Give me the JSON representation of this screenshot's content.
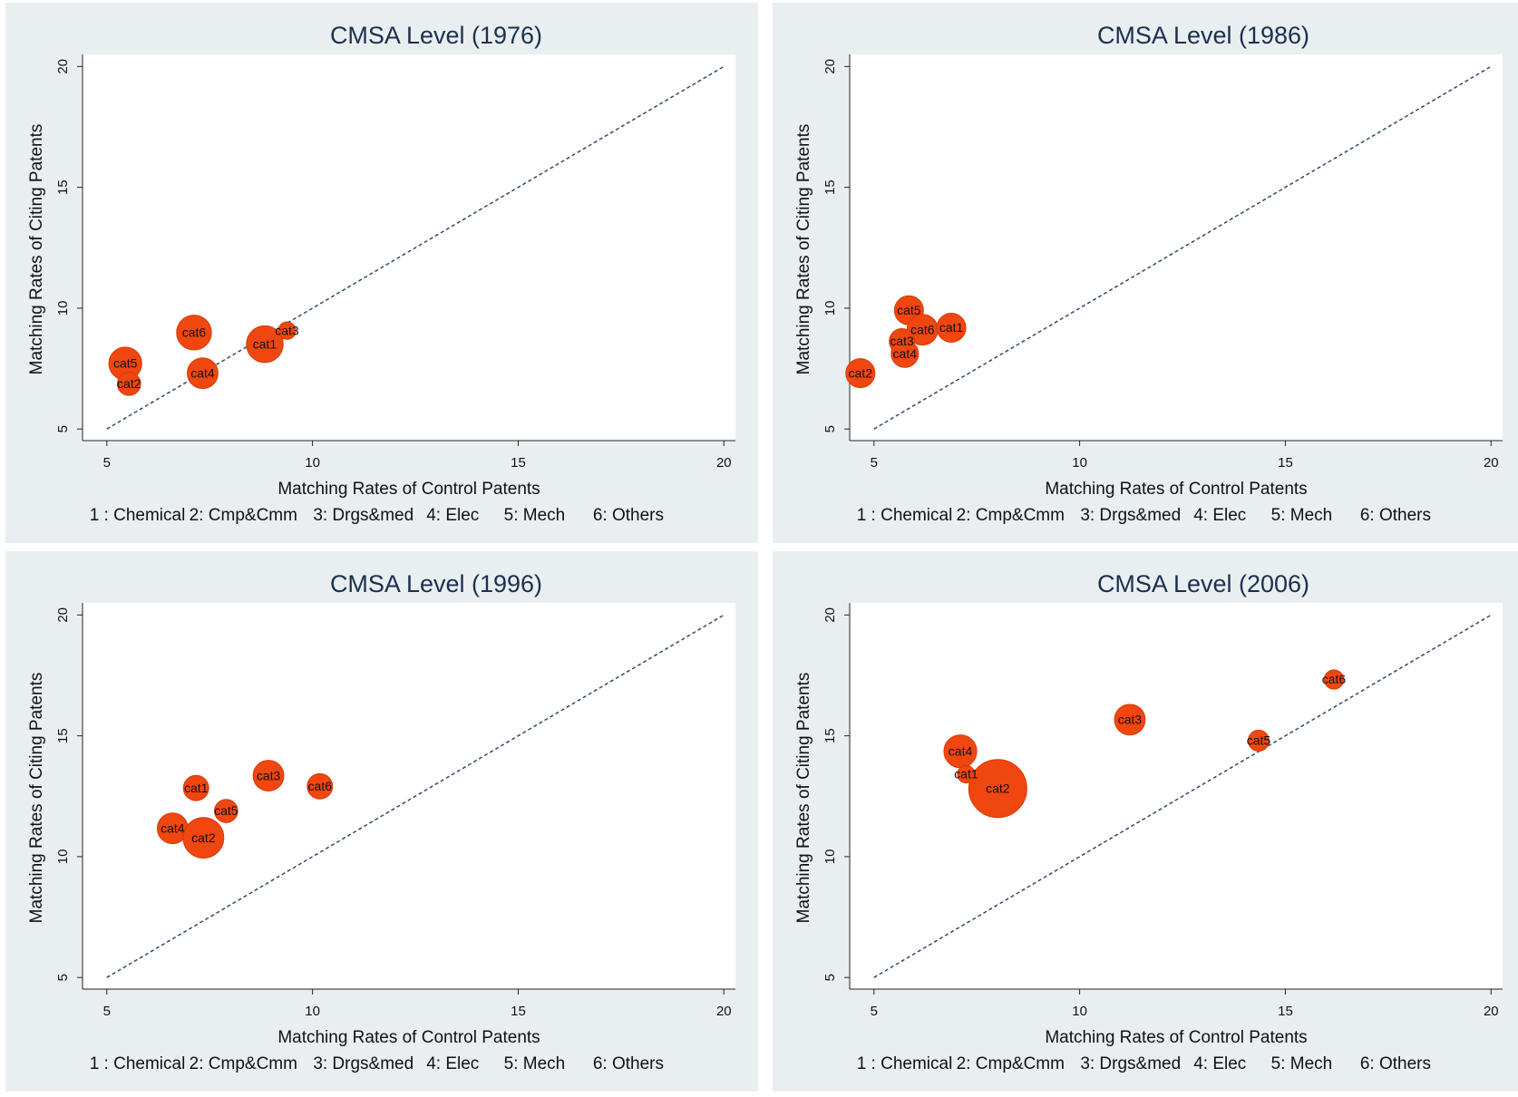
{
  "chart_data": [
    {
      "type": "bubble",
      "title": "CMSA Level (1976)",
      "x_label": "Matching Rates of Control Patents",
      "y_label": "Matching Rates of Citing Patents",
      "key": [
        "1 : Chemical",
        "2: Cmp&Cmm",
        "3: Drgs&med",
        "4: Elec",
        "5: Mech",
        "6: Others"
      ],
      "labels": [
        "cat5",
        "cat2",
        "cat6",
        "cat4",
        "cat1",
        "cat3"
      ],
      "x": [
        5.45,
        5.54,
        7.12,
        7.33,
        8.84,
        9.38
      ],
      "values": [
        7.71,
        6.87,
        8.99,
        7.31,
        8.51,
        9.07
      ],
      "sizes": [
        32,
        16,
        36,
        28,
        40,
        9
      ],
      "color": "#f04610",
      "diagonal": [
        5,
        20
      ],
      "xlim": [
        4.41,
        20.28
      ],
      "ylim": [
        4.52,
        20.5
      ],
      "xticks": [
        5,
        10,
        15,
        20
      ],
      "yticks": [
        5,
        10,
        15,
        20
      ]
    },
    {
      "type": "bubble",
      "title": "CMSA Level (1986)",
      "x_label": "Matching Rates of Control Patents",
      "y_label": "Matching Rates of Citing Patents",
      "key": [
        "1 : Chemical",
        "2: Cmp&Cmm",
        "3: Drgs&med",
        "4: Elec",
        "5: Mech",
        "6: Others"
      ],
      "labels": [
        "cat5",
        "cat6",
        "cat1",
        "cat3",
        "cat4",
        "cat2"
      ],
      "x": [
        5.85,
        6.18,
        6.88,
        5.68,
        5.75,
        4.67
      ],
      "values": [
        9.91,
        9.11,
        9.19,
        8.63,
        8.11,
        7.31
      ],
      "sizes": [
        25,
        28,
        25,
        19,
        22,
        25
      ],
      "color": "#f04610",
      "diagonal": [
        5,
        20
      ],
      "xlim": [
        4.41,
        20.28
      ],
      "ylim": [
        4.52,
        20.5
      ],
      "xticks": [
        5,
        10,
        15,
        20
      ],
      "yticks": [
        5,
        10,
        15,
        20
      ]
    },
    {
      "type": "bubble",
      "title": "CMSA Level (1996)",
      "x_label": "Matching Rates of Control Patents",
      "y_label": "Matching Rates of Citing Patents",
      "key": [
        "1 : Chemical",
        "2: Cmp&Cmm",
        "3: Drgs&med",
        "4: Elec",
        "5: Mech",
        "6: Others"
      ],
      "labels": [
        "cat1",
        "cat3",
        "cat6",
        "cat5",
        "cat4",
        "cat2"
      ],
      "x": [
        7.17,
        8.93,
        10.18,
        7.9,
        6.6,
        7.35
      ],
      "values": [
        12.84,
        13.35,
        12.91,
        11.89,
        11.17,
        10.78
      ],
      "sizes": [
        19,
        28,
        19,
        16,
        28,
        49
      ],
      "color": "#f04610",
      "diagonal": [
        5,
        20
      ],
      "xlim": [
        4.41,
        20.28
      ],
      "ylim": [
        4.52,
        20.5
      ],
      "xticks": [
        5,
        10,
        15,
        20
      ],
      "yticks": [
        5,
        10,
        15,
        20
      ]
    },
    {
      "type": "bubble",
      "title": "CMSA Level (2006)",
      "x_label": "Matching Rates of Control Patents",
      "y_label": "Matching Rates of Citing Patents",
      "key": [
        "1 : Chemical",
        "2: Cmp&Cmm",
        "3: Drgs&med",
        "4: Elec",
        "5: Mech",
        "6: Others"
      ],
      "labels": [
        "cat6",
        "cat3",
        "cat4",
        "cat5",
        "cat1",
        "cat2"
      ],
      "x": [
        16.18,
        11.22,
        7.1,
        14.35,
        7.24,
        8.01
      ],
      "values": [
        17.33,
        15.67,
        14.36,
        14.8,
        13.41,
        12.82
      ],
      "sizes": [
        11,
        28,
        32,
        13,
        9,
        100
      ],
      "color": "#f04610",
      "diagonal": [
        5,
        20
      ],
      "xlim": [
        4.41,
        20.28
      ],
      "ylim": [
        4.52,
        20.5
      ],
      "xticks": [
        5,
        10,
        15,
        20
      ],
      "yticks": [
        5,
        10,
        15,
        20
      ]
    }
  ]
}
